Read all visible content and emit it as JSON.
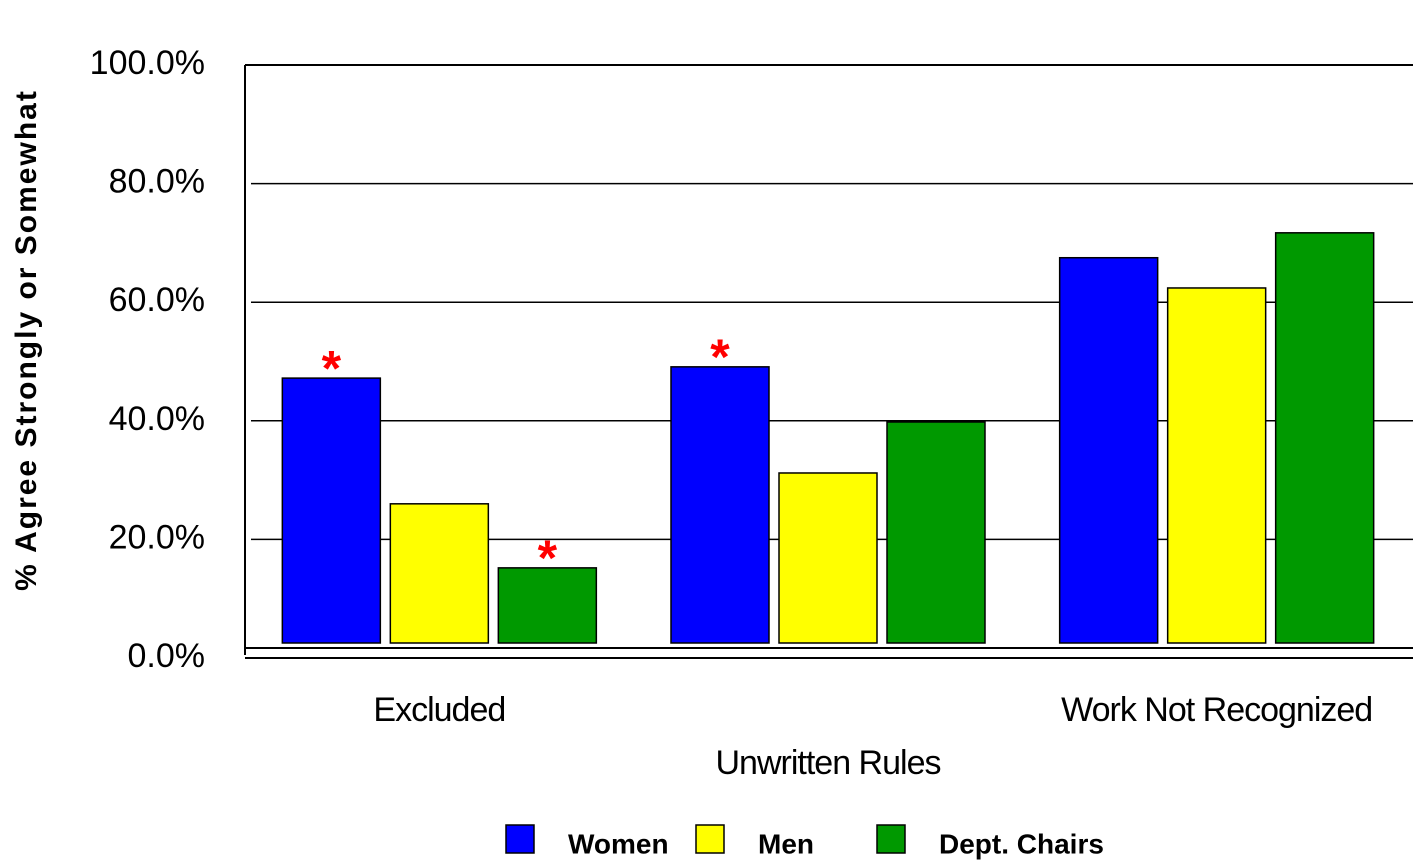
{
  "chart_data": {
    "type": "bar",
    "y_label": "% Agree Strongly or Somewhat",
    "categories": [
      "Excluded",
      "Unwritten Rules",
      "Work Not Recognized"
    ],
    "series": [
      {
        "name": "Women",
        "color": "#0000ff",
        "values": [
          47.2,
          49.1,
          67.5
        ]
      },
      {
        "name": "Men",
        "color": "#ffff00",
        "values": [
          26.0,
          31.2,
          62.4
        ]
      },
      {
        "name": "Dept. Chairs",
        "color": "#009900",
        "values": [
          15.2,
          39.8,
          71.7
        ]
      }
    ],
    "annotations": [
      {
        "text": "*",
        "series": 0,
        "category": 0
      },
      {
        "text": "*",
        "series": 2,
        "category": 0
      },
      {
        "text": "*",
        "series": 0,
        "category": 1
      }
    ],
    "ylim": [
      0,
      100
    ],
    "yticks": [
      {
        "value": 0,
        "label": "0.0%"
      },
      {
        "value": 20,
        "label": "20.0%"
      },
      {
        "value": 40,
        "label": "40.0%"
      },
      {
        "value": 60,
        "label": "60.0%"
      },
      {
        "value": 80,
        "label": "80.0%"
      },
      {
        "value": 100,
        "label": "100.0%"
      }
    ],
    "grid": true,
    "legend": "bottom"
  }
}
